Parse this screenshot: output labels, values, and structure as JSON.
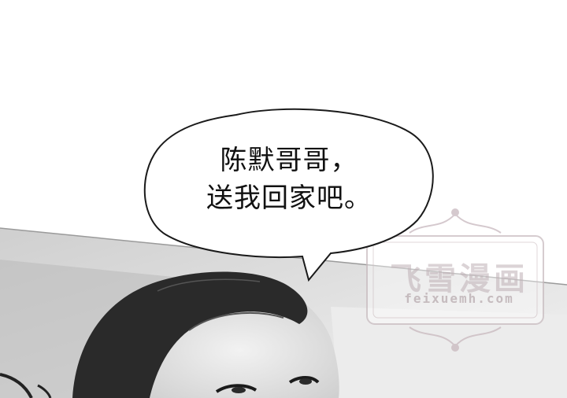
{
  "speech_bubble": {
    "line1": "陈默哥哥，",
    "line2": "送我回家吧。"
  },
  "watermark": {
    "title": "飞雪漫画",
    "url": "feixuemh.com"
  },
  "colors": {
    "background": "#ffffff",
    "bubble_stroke": "#1a1a1a",
    "watermark": "#bfaeb4"
  }
}
